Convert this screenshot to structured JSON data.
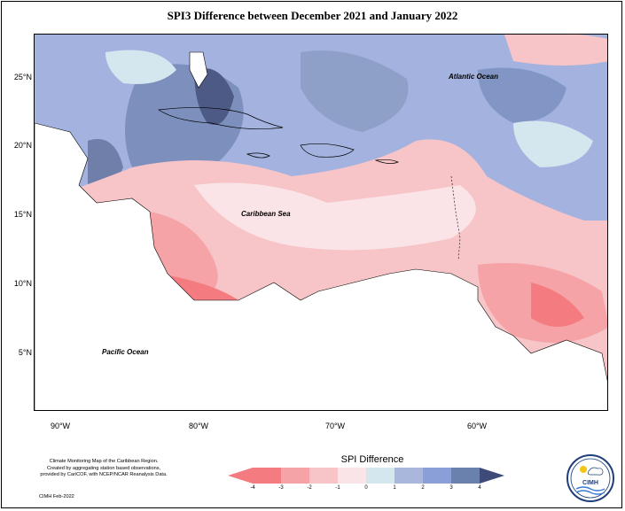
{
  "title": "SPI3 Difference between December 2021 and January 2022",
  "map": {
    "lat_labels": [
      "25°N",
      "20°N",
      "15°N",
      "10°N",
      "5°N"
    ],
    "lon_labels": [
      "90°W",
      "80°W",
      "70°W",
      "60°W"
    ],
    "lat_range": [
      1,
      28.5
    ],
    "lon_range": [
      -92,
      -50
    ],
    "ocean_labels": {
      "atlantic": "Atlantic Ocean",
      "caribbean": "Caribbean Sea",
      "pacific": "Pacific Ocean"
    }
  },
  "legend": {
    "title": "SPI Difference",
    "ticks": [
      "-4",
      "-3",
      "-2",
      "-1",
      "0",
      "1",
      "2",
      "3",
      "4"
    ],
    "colors": [
      "#f47c80",
      "#f5a3a6",
      "#f7c5c8",
      "#fbe4e7",
      "#d4e6ee",
      "#a9b7dd",
      "#8a9fd8",
      "#6b81ad",
      "#3e4b78"
    ]
  },
  "credits": {
    "line1": "Climate Monitoring Map of the Caribbean Region.",
    "line2": "Created by aggregating station based observations,",
    "line3": "provided by CariCOF, with NCEP/NCAR Reanalysis Data.",
    "date": "CIMH Feb-2022"
  },
  "logo": {
    "text": "CIMH"
  }
}
